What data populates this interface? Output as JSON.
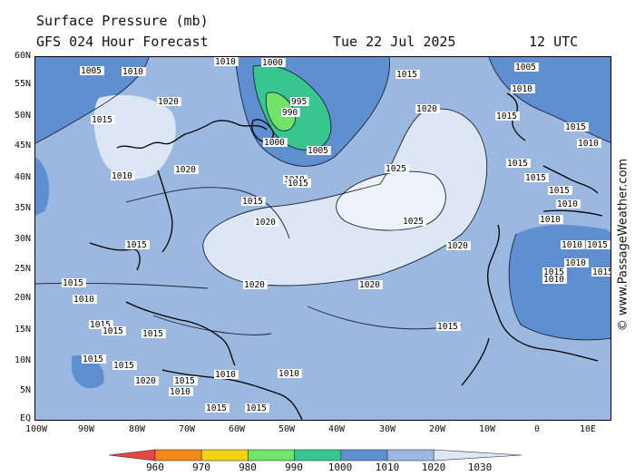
{
  "header": {
    "title": "Surface Pressure (mb)",
    "subtitle": "GFS 024 Hour Forecast",
    "date": "Tue 22 Jul 2025",
    "time": "12 UTC"
  },
  "credit": "© www.PassageWeather.com",
  "axes": {
    "lat_labels": [
      "60N",
      "55N",
      "50N",
      "45N",
      "40N",
      "35N",
      "30N",
      "25N",
      "20N",
      "15N",
      "10N",
      "5N",
      "EQ"
    ],
    "lon_labels": [
      "100W",
      "90W",
      "80W",
      "70W",
      "60W",
      "50W",
      "40W",
      "30W",
      "20W",
      "10W",
      "0",
      "10E"
    ]
  },
  "legend": {
    "labels": [
      "960",
      "970",
      "980",
      "990",
      "1000",
      "1010",
      "1020",
      "1030"
    ],
    "colors": [
      "#e84545",
      "#f08a1c",
      "#f2d216",
      "#72e36a",
      "#37c690",
      "#5f8fd0",
      "#9ab8e0",
      "#dce6f4"
    ]
  },
  "map": {
    "fill_colors": {
      "base": "#9ab8e0",
      "low": "#5f8fd0",
      "high": "#dce6f4",
      "ridge": "#eef2fa",
      "storm": "#37c690",
      "storm_core": "#72e36a"
    },
    "isobar_labels": [
      "1005",
      "1010",
      "1010",
      "1000",
      "1015",
      "1020",
      "1015",
      "995",
      "990",
      "1000",
      "1005",
      "1010",
      "1020",
      "1020",
      "1010",
      "1015",
      "1025",
      "1015",
      "1020",
      "1025",
      "1020",
      "1015",
      "1020",
      "1020",
      "1015",
      "1005",
      "1010",
      "1015",
      "1015",
      "1010",
      "1015",
      "1015",
      "1015",
      "1010",
      "1010",
      "1010",
      "1015",
      "1015",
      "1010",
      "1015",
      "1015",
      "1010",
      "1015",
      "1015",
      "1015",
      "1015",
      "1015",
      "1020",
      "1015",
      "1010",
      "1010",
      "1015",
      "1015",
      "1010",
      "1010"
    ]
  }
}
